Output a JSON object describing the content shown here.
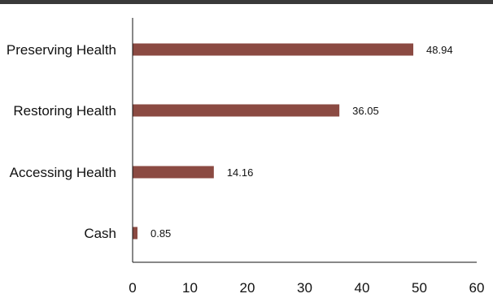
{
  "chart_data": {
    "type": "bar",
    "orientation": "horizontal",
    "categories": [
      "Preserving Health",
      "Restoring Health",
      "Accessing Health",
      "Cash"
    ],
    "values": [
      48.94,
      36.05,
      14.16,
      0.85
    ],
    "data_labels": [
      "48.94",
      "36.05",
      "14.16",
      "0.85"
    ],
    "xlim": [
      0,
      60
    ],
    "x_ticks": [
      0,
      10,
      20,
      30,
      40,
      50,
      60
    ],
    "x_tick_labels": [
      "0",
      "10",
      "20",
      "30",
      "40",
      "50",
      "60"
    ],
    "grid": false,
    "legend": "none",
    "title": "",
    "xlabel": "",
    "ylabel": ""
  },
  "colors": {
    "bar": "#8b4a42",
    "axis": "#111111",
    "top_rule": "#3a3a3a"
  }
}
